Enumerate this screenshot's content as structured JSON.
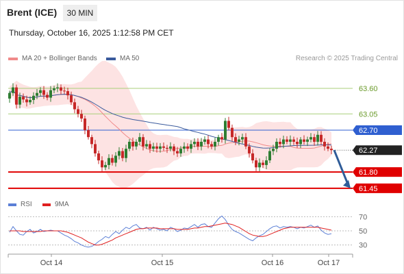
{
  "header": {
    "instrument": "Brent (ICE)",
    "timeframe": "30 MIN",
    "datetime": "Thursday, October 16, 2025 1:12:58 PM CET",
    "copyright": "Research © 2025 Trading Central"
  },
  "colors": {
    "candle_up": "#2e7d32",
    "candle_down": "#c62828",
    "bollinger_fill": "#fde3e3",
    "ma20": "#f08a8a",
    "ma50": "#3a5a9c",
    "resistance_line": "#a8cf7a",
    "pivot_line": "#2f5fd0",
    "support_line": "#e00000",
    "last_price_tag": "#222222",
    "rsi": "#5b7fd6",
    "rsi_ma": "#e02020"
  },
  "chart_data": [
    {
      "type": "candlestick",
      "legend": [
        {
          "name": "MA 20 + Bollinger Bands",
          "color": "#f08a8a"
        },
        {
          "name": "MA 50",
          "color": "#3a5a9c"
        }
      ],
      "legend_position": "top-left",
      "x_ticks": [
        "Oct 14",
        "Oct 15",
        "Oct 16",
        "Oct 17"
      ],
      "y_range": [
        61.3,
        63.85
      ],
      "levels": [
        {
          "value": 63.6,
          "label": "63.60",
          "role": "resistance",
          "color": "#a8cf7a"
        },
        {
          "value": 63.05,
          "label": "63.05",
          "role": "resistance",
          "color": "#a8cf7a"
        },
        {
          "value": 62.7,
          "label": "62.70",
          "role": "pivot",
          "color": "#2f5fd0"
        },
        {
          "value": 61.8,
          "label": "61.80",
          "role": "support",
          "color": "#e00000"
        },
        {
          "value": 61.45,
          "label": "61.45",
          "role": "support",
          "color": "#e00000"
        }
      ],
      "last_price": {
        "value": 62.27,
        "label": "62.27"
      },
      "forecast": {
        "from": 62.27,
        "to": 61.45,
        "direction": "down"
      },
      "closes": [
        63.5,
        63.62,
        63.25,
        63.42,
        63.36,
        63.3,
        63.35,
        63.44,
        63.5,
        63.56,
        63.46,
        63.4,
        63.56,
        63.6,
        63.62,
        63.55,
        63.54,
        63.45,
        63.3,
        63.15,
        63.05,
        62.95,
        62.7,
        62.55,
        62.4,
        62.2,
        62.05,
        61.9,
        61.95,
        62.1,
        62.0,
        62.15,
        62.25,
        62.1,
        62.3,
        62.45,
        62.35,
        62.45,
        62.55,
        62.35,
        62.4,
        62.3,
        62.35,
        62.3,
        62.35,
        62.32,
        62.3,
        62.35,
        62.25,
        62.2,
        62.3,
        62.35,
        62.3,
        62.4,
        62.45,
        62.35,
        62.45,
        62.5,
        62.4,
        62.35,
        62.45,
        62.55,
        62.5,
        62.9,
        62.75,
        62.55,
        62.45,
        62.5,
        62.55,
        62.35,
        62.2,
        62.05,
        61.9,
        62.0,
        61.95,
        62.05,
        62.25,
        62.3,
        62.45,
        62.4,
        62.5,
        62.45,
        62.5,
        62.45,
        62.4,
        62.5,
        62.45,
        62.5,
        62.55,
        62.45,
        62.6,
        62.45,
        62.35,
        62.3,
        62.27
      ]
    },
    {
      "type": "line",
      "title": "",
      "series": [
        {
          "name": "RSI",
          "color": "#5b7fd6",
          "values": [
            48,
            56,
            50,
            45,
            44,
            49,
            52,
            47,
            49,
            52,
            49,
            50,
            51,
            50,
            50,
            47,
            44,
            42,
            39,
            35,
            33,
            30,
            28,
            27,
            28,
            31,
            35,
            38,
            42,
            40,
            45,
            49,
            46,
            51,
            55,
            53,
            57,
            59,
            54,
            53,
            55,
            51,
            55,
            53,
            51,
            52,
            50,
            55,
            53,
            49,
            51,
            54,
            53,
            56,
            59,
            55,
            59,
            60,
            56,
            55,
            61,
            67,
            71,
            66,
            58,
            52,
            49,
            47,
            44,
            41,
            38,
            36,
            40,
            43,
            45,
            49,
            53,
            56,
            57,
            54,
            56,
            55,
            56,
            55,
            53,
            55,
            54,
            56,
            58,
            55,
            57,
            51,
            47,
            45,
            46
          ]
        },
        {
          "name": "9MA",
          "color": "#e02020",
          "values": [
            50,
            50,
            50,
            50,
            49,
            49,
            49,
            49,
            49,
            49,
            50,
            50,
            50,
            50,
            50,
            50,
            49,
            48,
            46,
            44,
            42,
            40,
            37,
            34,
            32,
            30,
            30,
            31,
            33,
            35,
            37,
            40,
            42,
            44,
            46,
            48,
            50,
            52,
            53,
            53,
            54,
            54,
            54,
            54,
            53,
            53,
            53,
            53,
            53,
            52,
            52,
            52,
            52,
            53,
            54,
            54,
            55,
            56,
            56,
            57,
            58,
            59,
            60,
            61,
            60,
            59,
            57,
            55,
            52,
            49,
            46,
            44,
            43,
            42,
            42,
            43,
            45,
            47,
            49,
            51,
            53,
            54,
            55,
            55,
            55,
            55,
            55,
            55,
            55,
            55,
            55,
            54,
            53,
            52,
            51
          ]
        }
      ],
      "legend": [
        {
          "name": "RSI",
          "color": "#5b7fd6"
        },
        {
          "name": "9MA",
          "color": "#e02020"
        }
      ],
      "legend_position": "top-left",
      "ylim": [
        20,
        80
      ],
      "y_ticks": [
        "70",
        "50",
        "30"
      ],
      "x_ticks": [
        "Oct 14",
        "Oct 15",
        "Oct 16",
        "Oct 17"
      ]
    }
  ]
}
